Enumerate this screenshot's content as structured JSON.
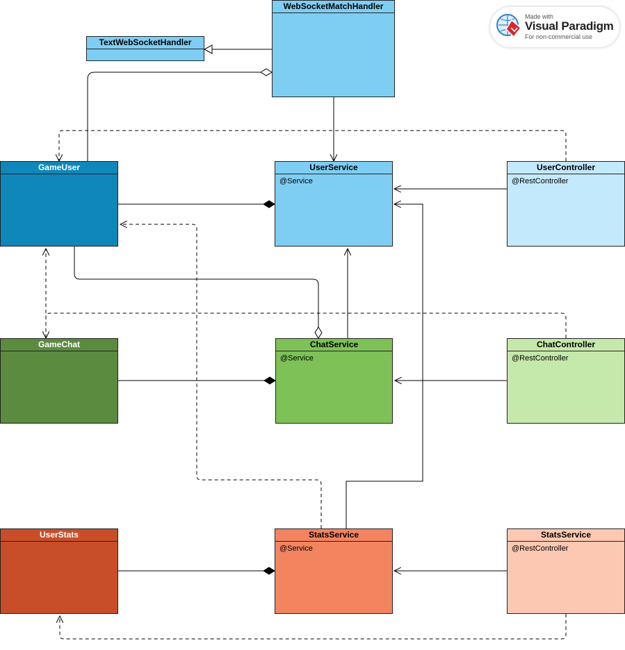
{
  "classes": {
    "websocket_handler": {
      "name": "WebSocketMatchHandler",
      "fill": "#7ecef4"
    },
    "text_ws_handler": {
      "name": "TextWebSocketHandler",
      "fill": "#7ecef4"
    },
    "game_user": {
      "name": "GameUser",
      "fill": "#0f87ba"
    },
    "user_service": {
      "name": "UserService",
      "annotation": "@Service",
      "fill": "#7ecef4"
    },
    "user_controller": {
      "name": "UserController",
      "annotation": "@RestController",
      "fill": "#c3e9fc"
    },
    "game_chat": {
      "name": "GameChat",
      "fill": "#5b8b3f"
    },
    "chat_service": {
      "name": "ChatService",
      "annotation": "@Service",
      "fill": "#7dc157"
    },
    "chat_controller": {
      "name": "ChatController",
      "annotation": "@RestController",
      "fill": "#c5e8ab"
    },
    "user_stats": {
      "name": "UserStats",
      "fill": "#c84e29"
    },
    "stats_service": {
      "name": "StatsService",
      "annotation": "@Service",
      "fill": "#f38460"
    },
    "stats_controller": {
      "name": "StatsService",
      "annotation": "@RestController",
      "fill": "#fdc8b2"
    }
  },
  "watermark": {
    "line1": "Made with",
    "line2": "Visual Paradigm",
    "line3": "For non-commercial use"
  }
}
